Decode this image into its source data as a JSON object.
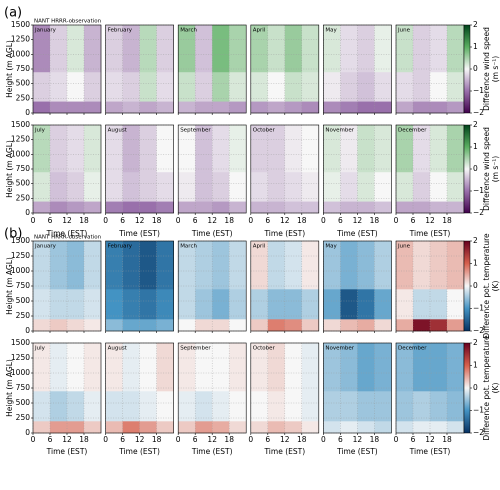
{
  "chart_data": [
    {
      "type": "heatmap",
      "label": "(a)",
      "subtitle": "NANT HRRR-observation",
      "xlabel": "Time (EST)",
      "ylabel": "Height (m AGL)",
      "colorbar_label": [
        "Difference wind speed",
        "(m s⁻¹)"
      ],
      "colormap": [
        "#40004b",
        "#9970ab",
        "#f7f7f7",
        "#5aae61",
        "#00441b"
      ],
      "clim": [
        -2,
        2
      ],
      "cticks": [
        {
          "value": -2,
          "label": "−2"
        },
        {
          "value": -1,
          "label": "−1"
        },
        0,
        1,
        2
      ],
      "xlim": [
        0,
        24
      ],
      "xticks": [
        0,
        6,
        12,
        18
      ],
      "ylim": [
        0,
        1500
      ],
      "yticks": [
        0,
        250,
        500,
        750,
        1000,
        1250,
        1500
      ],
      "x_bins": [
        0,
        6,
        12,
        18,
        24
      ],
      "y_bins": [
        0,
        200,
        700,
        1500
      ],
      "grid": true,
      "panels": [
        {
          "title": "January",
          "values": [
            [
              -1,
              -0.8,
              -0.8,
              -0.8
            ],
            [
              -0.3,
              -0.2,
              0,
              -0.3
            ],
            [
              -0.8,
              -0.3,
              0.2,
              -0.5
            ]
          ]
        },
        {
          "title": "February",
          "values": [
            [
              -0.6,
              -0.5,
              -0.6,
              -0.5
            ],
            [
              -0.2,
              -0.3,
              0.3,
              -0.2
            ],
            [
              -0.3,
              -0.5,
              0.4,
              -0.3
            ]
          ]
        },
        {
          "title": "March",
          "values": [
            [
              -0.5,
              -0.6,
              -0.6,
              -0.7
            ],
            [
              0.3,
              -0.3,
              0.5,
              0.2
            ],
            [
              0.6,
              -0.4,
              0.8,
              0.5
            ]
          ]
        },
        {
          "title": "April",
          "values": [
            [
              -0.7,
              -0.6,
              -0.7,
              -0.8
            ],
            [
              0.2,
              0,
              0.3,
              0.2
            ],
            [
              0.5,
              0.3,
              0.6,
              0.3
            ]
          ]
        },
        {
          "title": "May",
          "values": [
            [
              -0.8,
              -0.9,
              -1,
              -1
            ],
            [
              -0.1,
              -0.3,
              -0.4,
              -0.2
            ],
            [
              0.2,
              -0.2,
              -0.3,
              0.1
            ]
          ]
        },
        {
          "title": "June",
          "values": [
            [
              -0.6,
              -0.8,
              -0.8,
              -0.7
            ],
            [
              -0.2,
              -0.3,
              0,
              0.2
            ],
            [
              0.3,
              -0.3,
              -0.2,
              0.4
            ]
          ]
        },
        {
          "title": "July",
          "values": [
            [
              -0.6,
              -0.8,
              -0.7,
              -0.6
            ],
            [
              0.2,
              -0.4,
              -0.3,
              0.1
            ],
            [
              0.4,
              -0.3,
              -0.2,
              0.2
            ]
          ]
        },
        {
          "title": "August",
          "values": [
            [
              -0.9,
              -1,
              -1,
              -0.9
            ],
            [
              -0.2,
              -0.4,
              -0.3,
              -0.2
            ],
            [
              -0.2,
              -0.5,
              -0.3,
              0
            ]
          ]
        },
        {
          "title": "September",
          "values": [
            [
              -0.6,
              -0.6,
              -0.7,
              -0.5
            ],
            [
              -0.1,
              -0.4,
              -0.3,
              0
            ],
            [
              0,
              -0.4,
              -0.2,
              0.1
            ]
          ]
        },
        {
          "title": "October",
          "values": [
            [
              -0.5,
              -0.5,
              -0.4,
              -0.4
            ],
            [
              -0.2,
              -0.3,
              -0.2,
              -0.1
            ],
            [
              -0.3,
              -0.3,
              -0.1,
              0
            ]
          ]
        },
        {
          "title": "November",
          "values": [
            [
              -0.4,
              -0.5,
              -0.5,
              -0.4
            ],
            [
              0.1,
              -0.2,
              0.2,
              0
            ],
            [
              0.2,
              -0.1,
              0.3,
              0.2
            ]
          ]
        },
        {
          "title": "December",
          "values": [
            [
              -0.6,
              -0.6,
              -0.5,
              -0.5
            ],
            [
              0.2,
              -0.3,
              0,
              0.2
            ],
            [
              0.5,
              -0.2,
              0.2,
              0.5
            ]
          ]
        }
      ]
    },
    {
      "type": "heatmap",
      "label": "(b)",
      "subtitle": "NANT HRRR-observation",
      "xlabel": "Time (EST)",
      "ylabel": "Height (m AGL)",
      "colorbar_label": [
        "Difference pot. temperature",
        "(K)"
      ],
      "colormap": [
        "#053061",
        "#4393c3",
        "#f7f7f7",
        "#d6604d",
        "#67001f"
      ],
      "clim": [
        -2,
        2
      ],
      "cticks": [
        {
          "value": -2,
          "label": "−2"
        },
        {
          "value": -1,
          "label": "−1"
        },
        0,
        1,
        2
      ],
      "xlim": [
        0,
        24
      ],
      "xticks": [
        0,
        6,
        12,
        18
      ],
      "ylim": [
        0,
        1500
      ],
      "yticks": [
        0,
        250,
        500,
        750,
        1000,
        1250,
        1500
      ],
      "x_bins": [
        0,
        6,
        12,
        18,
        24
      ],
      "y_bins": [
        0,
        200,
        700,
        1500
      ],
      "grid": true,
      "panels": [
        {
          "title": "January",
          "values": [
            [
              0.2,
              0.3,
              0.2,
              0.1
            ],
            [
              -0.2,
              -0.3,
              -0.3,
              -0.2
            ],
            [
              -0.3,
              -0.5,
              -0.6,
              -0.3
            ]
          ]
        },
        {
          "title": "February",
          "values": [
            [
              -0.6,
              -0.8,
              -0.8,
              -0.7
            ],
            [
              -1,
              -1.2,
              -1.3,
              -1.1
            ],
            [
              -1.2,
              -1.4,
              -1.6,
              -1.3
            ]
          ]
        },
        {
          "title": "March",
          "values": [
            [
              0,
              0.2,
              0.2,
              0
            ],
            [
              -0.3,
              -0.5,
              -0.7,
              -0.4
            ],
            [
              -0.3,
              -0.4,
              -0.5,
              -0.3
            ]
          ]
        },
        {
          "title": "April",
          "values": [
            [
              0.3,
              0.8,
              0.7,
              0.3
            ],
            [
              -0.4,
              -0.6,
              -0.6,
              -0.4
            ],
            [
              0.2,
              -0.3,
              -0.2,
              0.1
            ]
          ]
        },
        {
          "title": "May",
          "values": [
            [
              0.2,
              0.4,
              0.5,
              0.2
            ],
            [
              -0.8,
              -1.6,
              -1.3,
              -0.8
            ],
            [
              -0.5,
              -0.7,
              -0.6,
              -0.4
            ]
          ]
        },
        {
          "title": "June",
          "values": [
            [
              0.5,
              1.8,
              1.5,
              0.6
            ],
            [
              0.1,
              -0.3,
              -0.3,
              0
            ],
            [
              0.4,
              0.2,
              0.3,
              0.4
            ]
          ]
        },
        {
          "title": "July",
          "values": [
            [
              0.3,
              0.6,
              0.6,
              0.3
            ],
            [
              -0.2,
              -0.4,
              -0.3,
              -0.1
            ],
            [
              0.1,
              -0.1,
              0,
              0.1
            ]
          ]
        },
        {
          "title": "August",
          "values": [
            [
              0.4,
              0.8,
              0.6,
              0.3
            ],
            [
              -0.2,
              -0.2,
              -0.1,
              0
            ],
            [
              0.1,
              -0.1,
              0,
              0.2
            ]
          ]
        },
        {
          "title": "September",
          "values": [
            [
              0.3,
              0.6,
              0.5,
              0.2
            ],
            [
              -0.1,
              -0.2,
              -0.1,
              0
            ],
            [
              0.1,
              0,
              0,
              0.1
            ]
          ]
        },
        {
          "title": "October",
          "values": [
            [
              0.2,
              0.4,
              0.3,
              0.1
            ],
            [
              0,
              0.1,
              0,
              -0.1
            ],
            [
              0.1,
              0.2,
              0,
              -0.1
            ]
          ]
        },
        {
          "title": "November",
          "values": [
            [
              -0.2,
              -0.1,
              -0.2,
              -0.3
            ],
            [
              -0.4,
              -0.4,
              -0.5,
              -0.5
            ],
            [
              -0.5,
              -0.6,
              -0.8,
              -0.7
            ]
          ]
        },
        {
          "title": "December",
          "values": [
            [
              -0.2,
              -0.1,
              -0.1,
              -0.2
            ],
            [
              -0.5,
              -0.4,
              -0.5,
              -0.6
            ],
            [
              -0.6,
              -0.8,
              -0.8,
              -0.7
            ]
          ]
        }
      ]
    }
  ]
}
